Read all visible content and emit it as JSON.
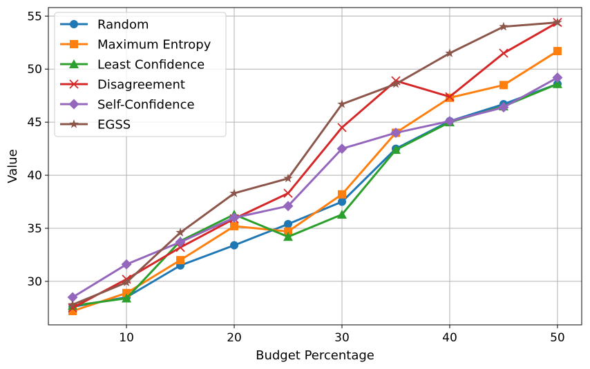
{
  "chart_data": {
    "type": "line",
    "title": "",
    "xlabel": "Budget Percentage",
    "ylabel": "Value",
    "x": [
      5,
      10,
      15,
      20,
      25,
      30,
      35,
      40,
      45,
      50
    ],
    "xlim": [
      2.75,
      52.25
    ],
    "ylim": [
      25.9,
      55.8
    ],
    "xticks": [
      10,
      20,
      30,
      40,
      50
    ],
    "yticks": [
      30,
      35,
      40,
      45,
      50,
      55
    ],
    "grid": true,
    "legend_position": "top-left",
    "series": [
      {
        "name": "Random",
        "color": "#1f77b4",
        "marker": "circle",
        "values": [
          27.6,
          28.5,
          31.5,
          33.4,
          35.4,
          37.5,
          42.5,
          45.1,
          46.7,
          48.6
        ]
      },
      {
        "name": "Maximum Entropy",
        "color": "#ff7f0e",
        "marker": "square",
        "values": [
          27.2,
          28.9,
          32.0,
          35.2,
          34.7,
          38.2,
          44.0,
          47.3,
          48.5,
          51.7
        ]
      },
      {
        "name": "Least Confidence",
        "color": "#2ca02c",
        "marker": "triangle",
        "values": [
          27.7,
          28.4,
          33.8,
          36.3,
          34.2,
          36.3,
          42.4,
          45.0,
          46.5,
          48.6
        ]
      },
      {
        "name": "Disagreement",
        "color": "#d62728",
        "marker": "x",
        "values": [
          27.5,
          30.2,
          33.2,
          35.9,
          38.3,
          44.5,
          48.9,
          47.4,
          51.5,
          54.4
        ]
      },
      {
        "name": "Self-Confidence",
        "color": "#9467bd",
        "marker": "diamond",
        "values": [
          28.5,
          31.6,
          33.7,
          36.0,
          37.1,
          42.5,
          44.0,
          45.1,
          46.4,
          49.2
        ]
      },
      {
        "name": "EGSS",
        "color": "#8c564b",
        "marker": "star",
        "values": [
          27.8,
          29.9,
          34.6,
          38.3,
          39.7,
          46.7,
          48.6,
          51.5,
          54.0,
          54.4
        ]
      }
    ]
  }
}
